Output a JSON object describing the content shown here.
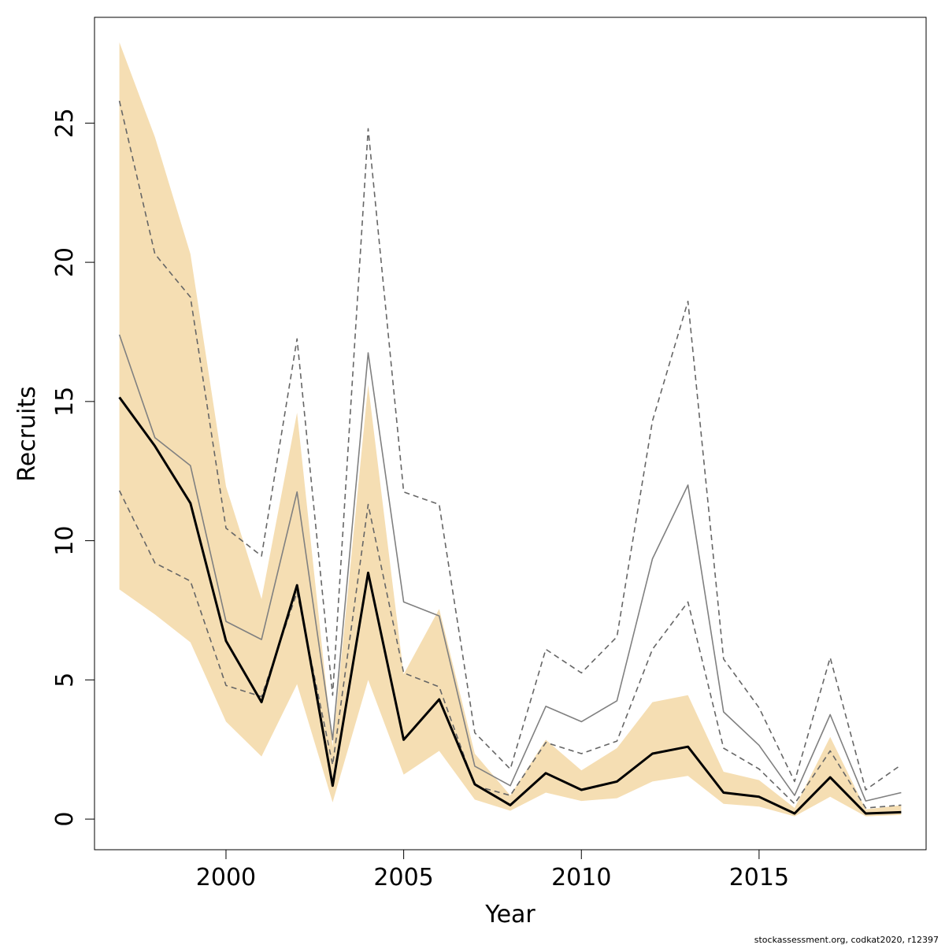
{
  "chart_data": {
    "type": "line",
    "xlabel": "Year",
    "ylabel": "Recruits",
    "xlim": [
      1996.3,
      2019.7
    ],
    "ylim": [
      -1.1,
      28.8
    ],
    "x_ticks": [
      2000,
      2005,
      2010,
      2015
    ],
    "y_ticks": [
      0,
      5,
      10,
      15,
      20,
      25
    ],
    "grid": false,
    "legend": "none",
    "x": [
      1997,
      1998,
      1999,
      2000,
      2001,
      2002,
      2003,
      2004,
      2005,
      2006,
      2007,
      2008,
      2009,
      2010,
      2011,
      2012,
      2013,
      2014,
      2015,
      2016,
      2017,
      2018,
      2019
    ],
    "series": [
      {
        "role": "estimate",
        "color": "#000000",
        "values": [
          15.15,
          13.4,
          11.35,
          6.4,
          4.2,
          8.4,
          1.2,
          8.85,
          2.85,
          4.3,
          1.25,
          0.5,
          1.65,
          1.05,
          1.35,
          2.35,
          2.6,
          0.95,
          0.8,
          0.2,
          1.5,
          0.2,
          0.25
        ]
      },
      {
        "role": "band_lower",
        "color": "#f5deb3",
        "values": [
          8.25,
          7.35,
          6.35,
          3.5,
          2.25,
          4.85,
          0.6,
          5.0,
          1.6,
          2.45,
          0.7,
          0.3,
          0.95,
          0.65,
          0.75,
          1.35,
          1.55,
          0.55,
          0.45,
          0.1,
          0.8,
          0.1,
          0.15
        ]
      },
      {
        "role": "band_upper",
        "color": "#f5deb3",
        "values": [
          27.9,
          24.5,
          20.3,
          11.95,
          7.9,
          14.6,
          2.6,
          15.6,
          5.2,
          7.55,
          2.35,
          0.85,
          2.85,
          1.75,
          2.55,
          4.2,
          4.45,
          1.7,
          1.4,
          0.4,
          2.95,
          0.35,
          0.5
        ]
      },
      {
        "role": "comparison",
        "color": "#808080",
        "values": [
          17.4,
          13.7,
          12.7,
          7.1,
          6.45,
          11.75,
          2.85,
          16.75,
          7.8,
          7.3,
          1.9,
          1.2,
          4.05,
          3.5,
          4.25,
          9.35,
          12.0,
          3.85,
          2.65,
          0.85,
          3.75,
          0.65,
          0.95
        ]
      },
      {
        "role": "comparison_lower",
        "color": "#666666",
        "values": [
          11.8,
          9.2,
          8.55,
          4.8,
          4.4,
          8.15,
          1.95,
          11.3,
          5.25,
          4.75,
          1.2,
          0.85,
          2.75,
          2.35,
          2.8,
          6.1,
          7.8,
          2.55,
          1.8,
          0.55,
          2.45,
          0.4,
          0.5
        ]
      },
      {
        "role": "comparison_upper",
        "color": "#666666",
        "values": [
          25.8,
          20.3,
          18.75,
          10.45,
          9.45,
          17.25,
          4.45,
          24.8,
          11.75,
          11.3,
          3.1,
          1.8,
          6.1,
          5.25,
          6.55,
          14.3,
          18.6,
          5.75,
          4.0,
          1.35,
          5.8,
          1.05,
          1.95
        ]
      }
    ]
  },
  "footer": "stockassessment.org, codkat2020, r12397"
}
